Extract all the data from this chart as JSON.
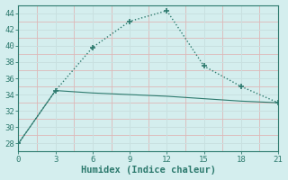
{
  "line1_x": [
    0,
    3,
    6,
    9,
    12,
    15,
    18,
    21
  ],
  "line1_y": [
    28,
    34.5,
    39.8,
    43.0,
    44.3,
    37.5,
    35.0,
    33.0
  ],
  "line2_x": [
    0,
    3,
    6,
    9,
    12,
    15,
    18,
    21
  ],
  "line2_y": [
    28,
    34.5,
    34.2,
    34.0,
    33.8,
    33.5,
    33.2,
    33.0
  ],
  "line_color": "#2d7a6e",
  "bg_color": "#d4eeee",
  "grid_major_color": "#c8e0e0",
  "grid_minor_color": "#ddb8b8",
  "xlabel": "Humidex (Indice chaleur)",
  "xlim": [
    0,
    21
  ],
  "ylim": [
    27,
    45
  ],
  "xticks": [
    0,
    3,
    6,
    9,
    12,
    15,
    18,
    21
  ],
  "yticks": [
    28,
    30,
    32,
    34,
    36,
    38,
    40,
    42,
    44
  ],
  "xlabel_fontsize": 7.5,
  "tick_fontsize": 6.5,
  "marker": "+",
  "marker_size": 5,
  "line1_style": ":",
  "line2_style": "-",
  "linewidth1": 1.0,
  "linewidth2": 0.8
}
